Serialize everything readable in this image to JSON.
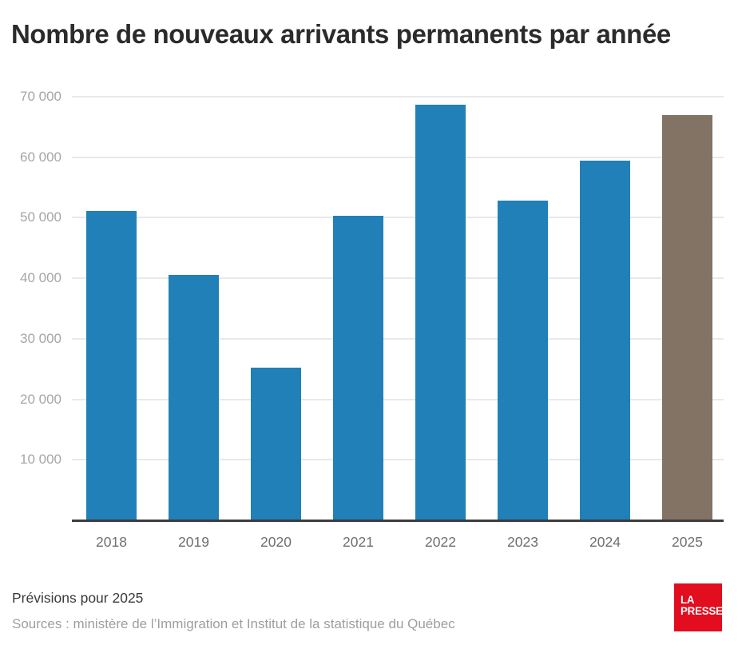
{
  "title": "Nombre de nouveaux arrivants permanents par année",
  "chart_data": {
    "type": "bar",
    "title": "Nombre de nouveaux arrivants permanents par année",
    "categories": [
      "2018",
      "2019",
      "2020",
      "2021",
      "2022",
      "2023",
      "2024",
      "2025"
    ],
    "values": [
      51125,
      40565,
      25225,
      50285,
      68685,
      52800,
      59400,
      67000
    ],
    "xlabel": "",
    "ylabel": "",
    "ylim": [
      0,
      70000
    ],
    "ytick_step": 10000,
    "ytick_labels": [
      "10 000",
      "20 000",
      "30 000",
      "40 000",
      "50 000",
      "60 000",
      "70 000"
    ],
    "grid": true,
    "legend_position": "none",
    "bar_color": "#2180b8",
    "highlight_category": "2025",
    "highlight_color": "#837365"
  },
  "footer": {
    "note": "Prévisions pour 2025",
    "sources": "Sources : ministère de l’Immigration et Institut de la statistique du Québec"
  },
  "logo": {
    "line1": "LA",
    "line2": "PRESSE",
    "bg_color": "#e20d1f",
    "text_color": "#ffffff"
  }
}
